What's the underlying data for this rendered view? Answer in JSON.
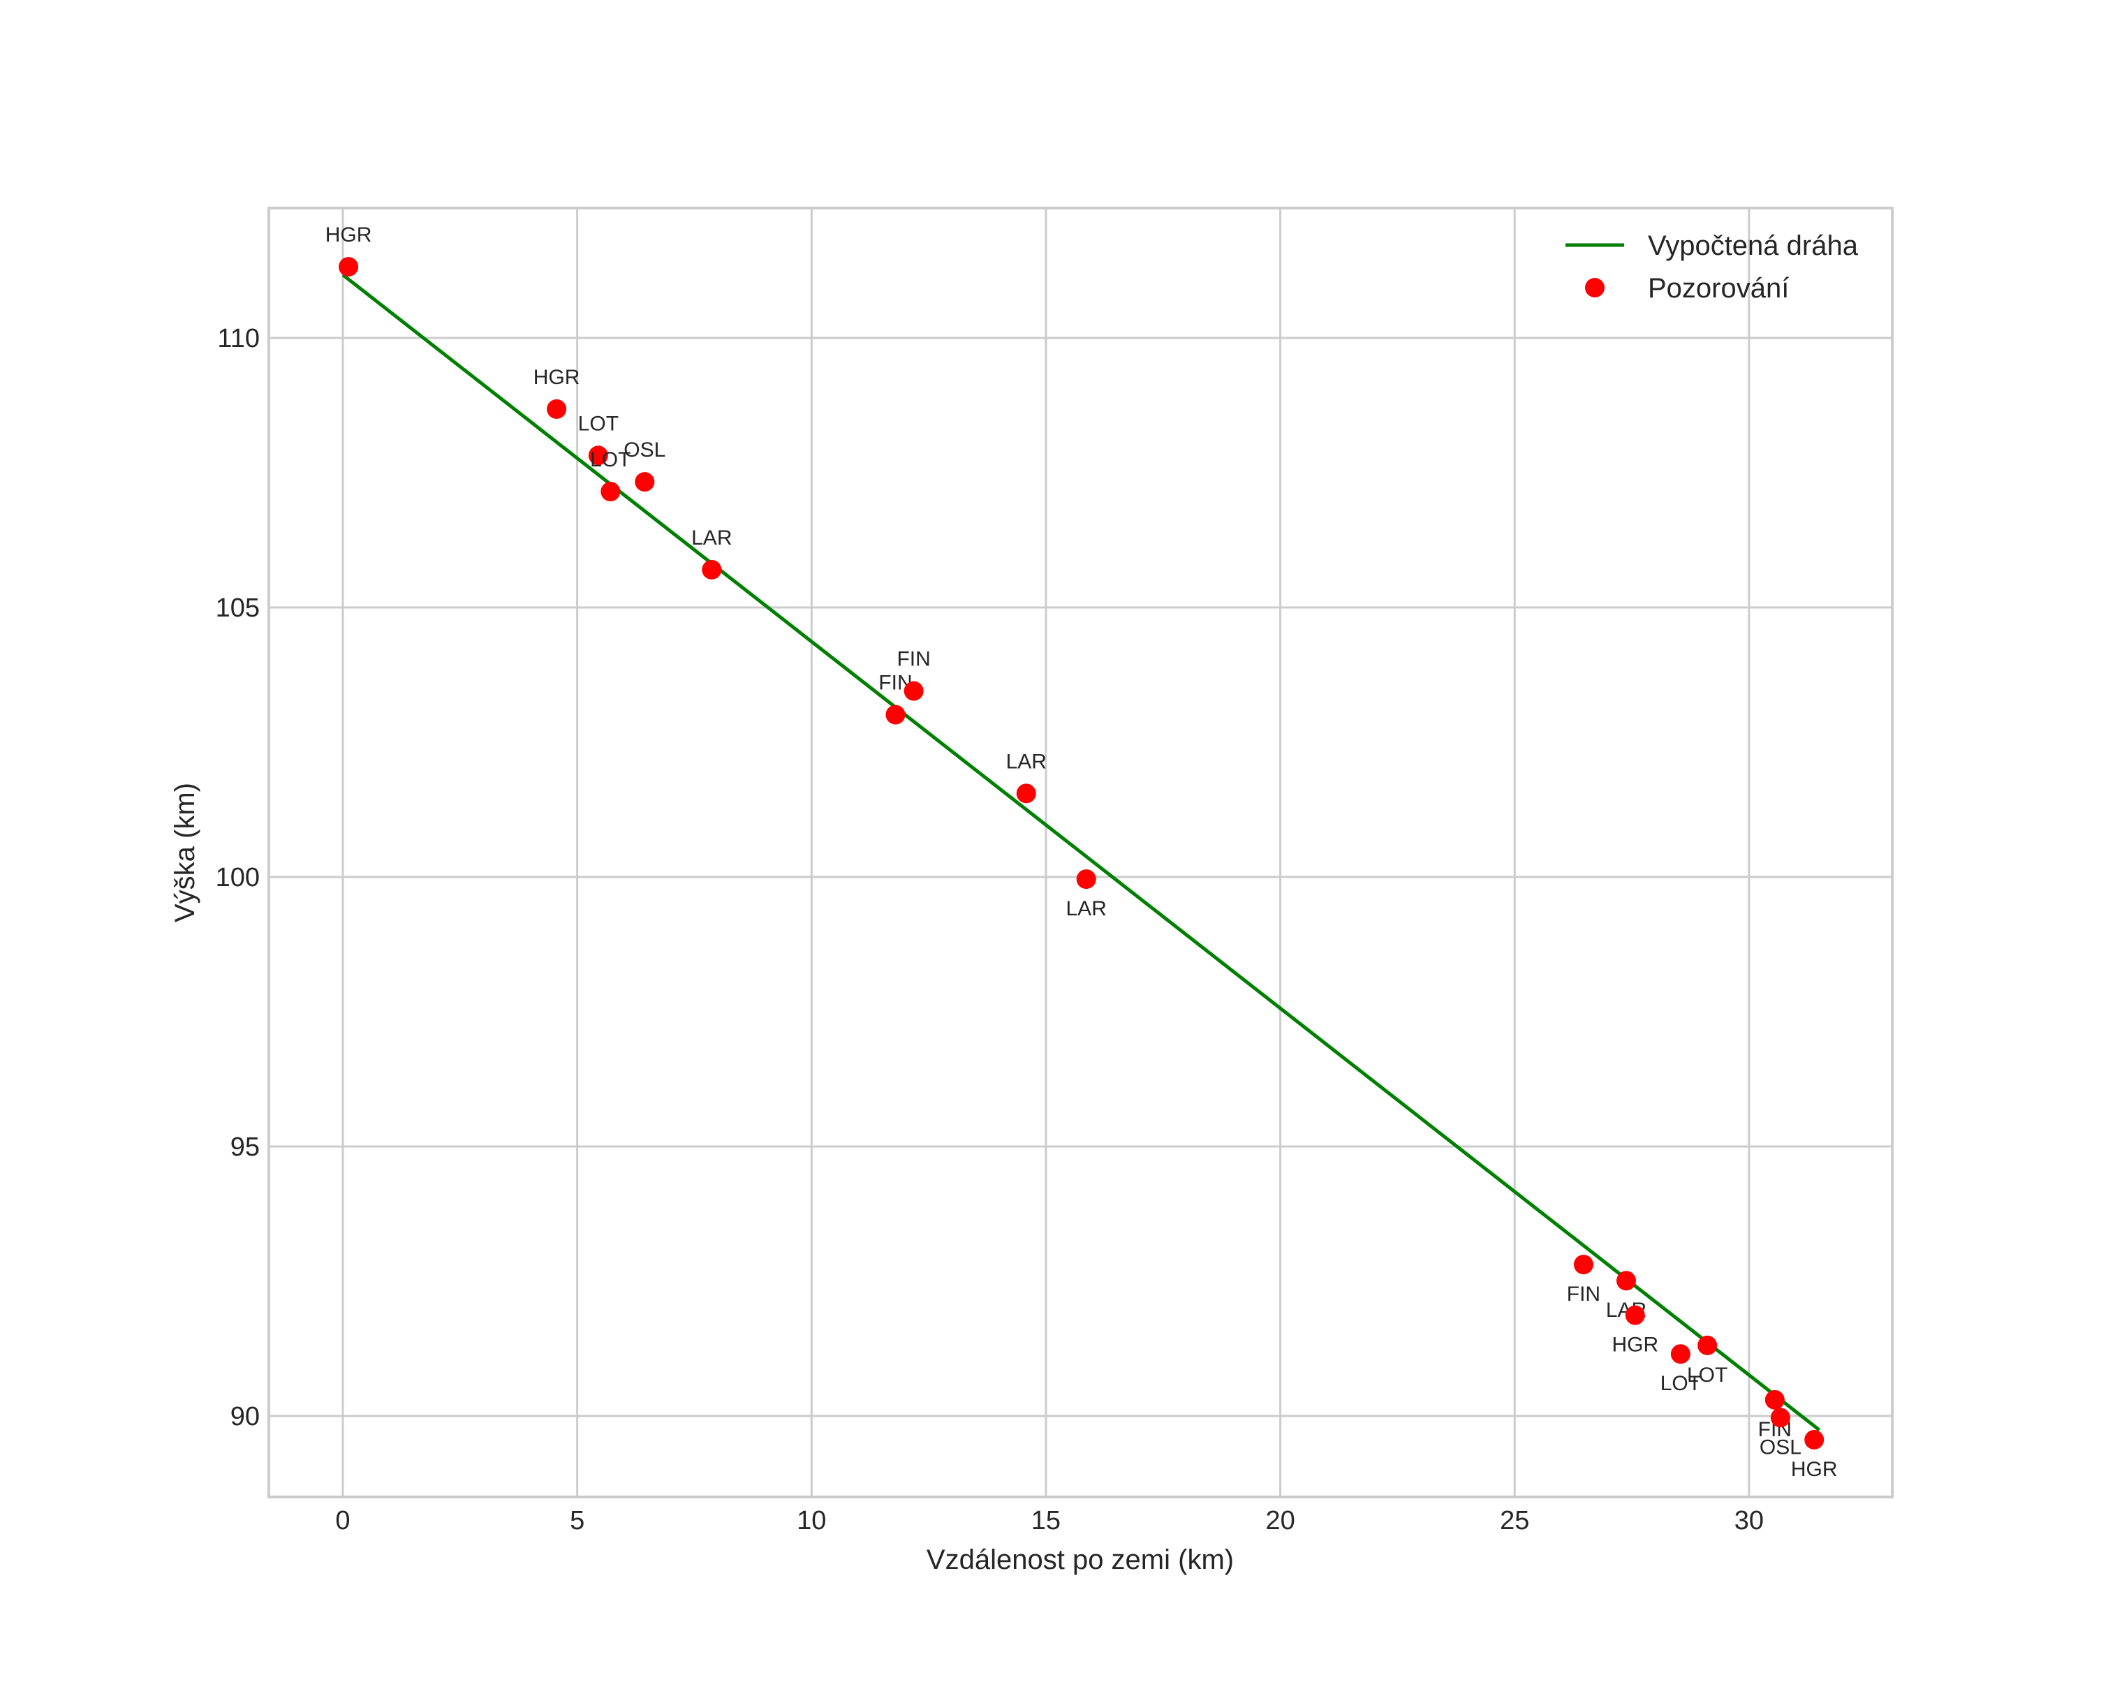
{
  "chart_data": {
    "type": "scatter",
    "title": "",
    "xlabel": "Vzdálenost po zemi (km)",
    "ylabel": "Výška (km)",
    "xlim": [
      -1.6,
      33.0
    ],
    "ylim": [
      88.5,
      112.5
    ],
    "xticks": [
      0,
      5,
      10,
      15,
      20,
      25,
      30
    ],
    "yticks": [
      90,
      95,
      100,
      105,
      110
    ],
    "grid": true,
    "legend_position": "upper right",
    "series": [
      {
        "name": "Vypočtená dráha",
        "type": "line",
        "color": "#008000",
        "x": [
          0.0,
          31.5
        ],
        "y": [
          111.17,
          89.74
        ]
      },
      {
        "name": "Pozorování",
        "type": "scatter",
        "color": "#ff0000",
        "points": [
          {
            "label": "HGR",
            "x": 0.12,
            "y": 111.32,
            "label_pos": "above"
          },
          {
            "label": "HGR",
            "x": 4.56,
            "y": 108.68,
            "label_pos": "above"
          },
          {
            "label": "LOT",
            "x": 5.45,
            "y": 107.82,
            "label_pos": "above"
          },
          {
            "label": "LOT",
            "x": 5.71,
            "y": 107.15,
            "label_pos": "above"
          },
          {
            "label": "OSL",
            "x": 6.44,
            "y": 107.33,
            "label_pos": "above"
          },
          {
            "label": "LAR",
            "x": 7.87,
            "y": 105.7,
            "label_pos": "above"
          },
          {
            "label": "FIN",
            "x": 11.79,
            "y": 103.01,
            "label_pos": "above"
          },
          {
            "label": "FIN",
            "x": 12.18,
            "y": 103.45,
            "label_pos": "above"
          },
          {
            "label": "LAR",
            "x": 14.58,
            "y": 101.55,
            "label_pos": "above"
          },
          {
            "label": "LAR",
            "x": 15.86,
            "y": 99.96,
            "label_pos": "below"
          },
          {
            "label": "FIN",
            "x": 26.47,
            "y": 92.81,
            "label_pos": "below"
          },
          {
            "label": "LAR",
            "x": 27.38,
            "y": 92.51,
            "label_pos": "below"
          },
          {
            "label": "HGR",
            "x": 27.57,
            "y": 91.87,
            "label_pos": "below"
          },
          {
            "label": "LOT",
            "x": 28.54,
            "y": 91.15,
            "label_pos": "below"
          },
          {
            "label": "LOT",
            "x": 29.11,
            "y": 91.31,
            "label_pos": "below"
          },
          {
            "label": "FIN",
            "x": 30.55,
            "y": 90.3,
            "label_pos": "below"
          },
          {
            "label": "OSL",
            "x": 30.67,
            "y": 89.97,
            "label_pos": "below"
          },
          {
            "label": "HGR",
            "x": 31.39,
            "y": 89.56,
            "label_pos": "below"
          }
        ]
      }
    ]
  },
  "legend": {
    "line_label": "Vypočtená dráha",
    "marker_label": "Pozorování"
  },
  "axes": {
    "xlabel": "Vzdálenost po zemi (km)",
    "ylabel": "Výška (km)"
  },
  "colors": {
    "line": "#008000",
    "marker": "#ff0000",
    "grid": "#cccccc",
    "text": "#262626"
  }
}
